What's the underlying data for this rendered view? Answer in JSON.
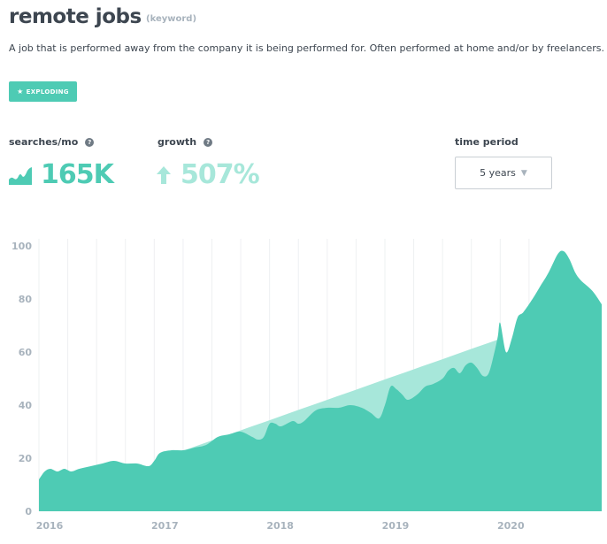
{
  "header": {
    "title": "remote jobs",
    "kind": "(keyword)",
    "description": "A job that is performed away from the company it is being performed for. Often performed at home and/or by freelancers.",
    "badge": "EXPLODING",
    "badge_icon": "star-icon"
  },
  "metrics": {
    "searches_label": "searches/mo",
    "searches_value": "165K",
    "searches_icon": "trend-chart-icon",
    "growth_label": "growth",
    "growth_value": "507%",
    "growth_icon": "arrow-up-icon",
    "help_icon": "question-icon",
    "accent_color": "#4ecbb4",
    "growth_color": "#a7e7da"
  },
  "time_period": {
    "label": "time period",
    "selected": "5 years",
    "caret_icon": "caret-down-icon"
  },
  "chart_data": {
    "type": "area",
    "title": "",
    "xlabel": "",
    "ylabel": "",
    "xlim": [
      2016.0,
      2020.88
    ],
    "ylim": [
      0,
      100
    ],
    "yticks": [
      0,
      20,
      40,
      60,
      80,
      100
    ],
    "xticks": [
      2016,
      2017,
      2018,
      2019,
      2020
    ],
    "xtick_labels": [
      "2016",
      "2017",
      "2018",
      "2019",
      "2020"
    ],
    "grid": true,
    "series": [
      {
        "kind": "area",
        "color": "#4ecbb4",
        "x": [
          2016.0,
          2016.05,
          2016.1,
          2016.16,
          2016.22,
          2016.28,
          2016.35,
          2016.45,
          2016.55,
          2016.65,
          2016.75,
          2016.85,
          2016.95,
          2017.0,
          2017.05,
          2017.15,
          2017.25,
          2017.35,
          2017.45,
          2017.55,
          2017.65,
          2017.75,
          2017.85,
          2017.9,
          2017.95,
          2018.0,
          2018.05,
          2018.1,
          2018.2,
          2018.25,
          2018.3,
          2018.4,
          2018.5,
          2018.6,
          2018.7,
          2018.8,
          2018.88,
          2018.95,
          2019.0,
          2019.05,
          2019.1,
          2019.15,
          2019.2,
          2019.28,
          2019.35,
          2019.42,
          2019.5,
          2019.55,
          2019.6,
          2019.65,
          2019.7,
          2019.75,
          2019.8,
          2019.85,
          2019.9,
          2019.95,
          2019.98,
          2020.0,
          2020.05,
          2020.1,
          2020.15,
          2020.2,
          2020.28,
          2020.35,
          2020.42,
          2020.5,
          2020.55,
          2020.6,
          2020.65,
          2020.7,
          2020.8,
          2020.88
        ],
        "values": [
          12,
          15,
          16,
          15,
          16,
          15,
          16,
          17,
          18,
          19,
          18,
          18,
          17,
          19,
          22,
          23,
          23,
          24,
          25,
          28,
          29,
          30,
          28,
          27,
          28,
          33,
          33,
          32,
          34,
          33,
          34,
          38,
          39,
          39,
          40,
          39,
          37,
          35,
          40,
          47,
          46,
          44,
          42,
          44,
          47,
          48,
          50,
          53,
          54,
          52,
          55,
          56,
          54,
          51,
          52,
          60,
          66,
          71,
          60,
          65,
          73,
          75,
          80,
          85,
          90,
          97,
          98,
          95,
          90,
          87,
          83,
          78
        ]
      },
      {
        "kind": "trend",
        "color": "#a7e7da",
        "x": [
          2017.0,
          2020.0
        ],
        "values": [
          19,
          65
        ]
      }
    ]
  }
}
